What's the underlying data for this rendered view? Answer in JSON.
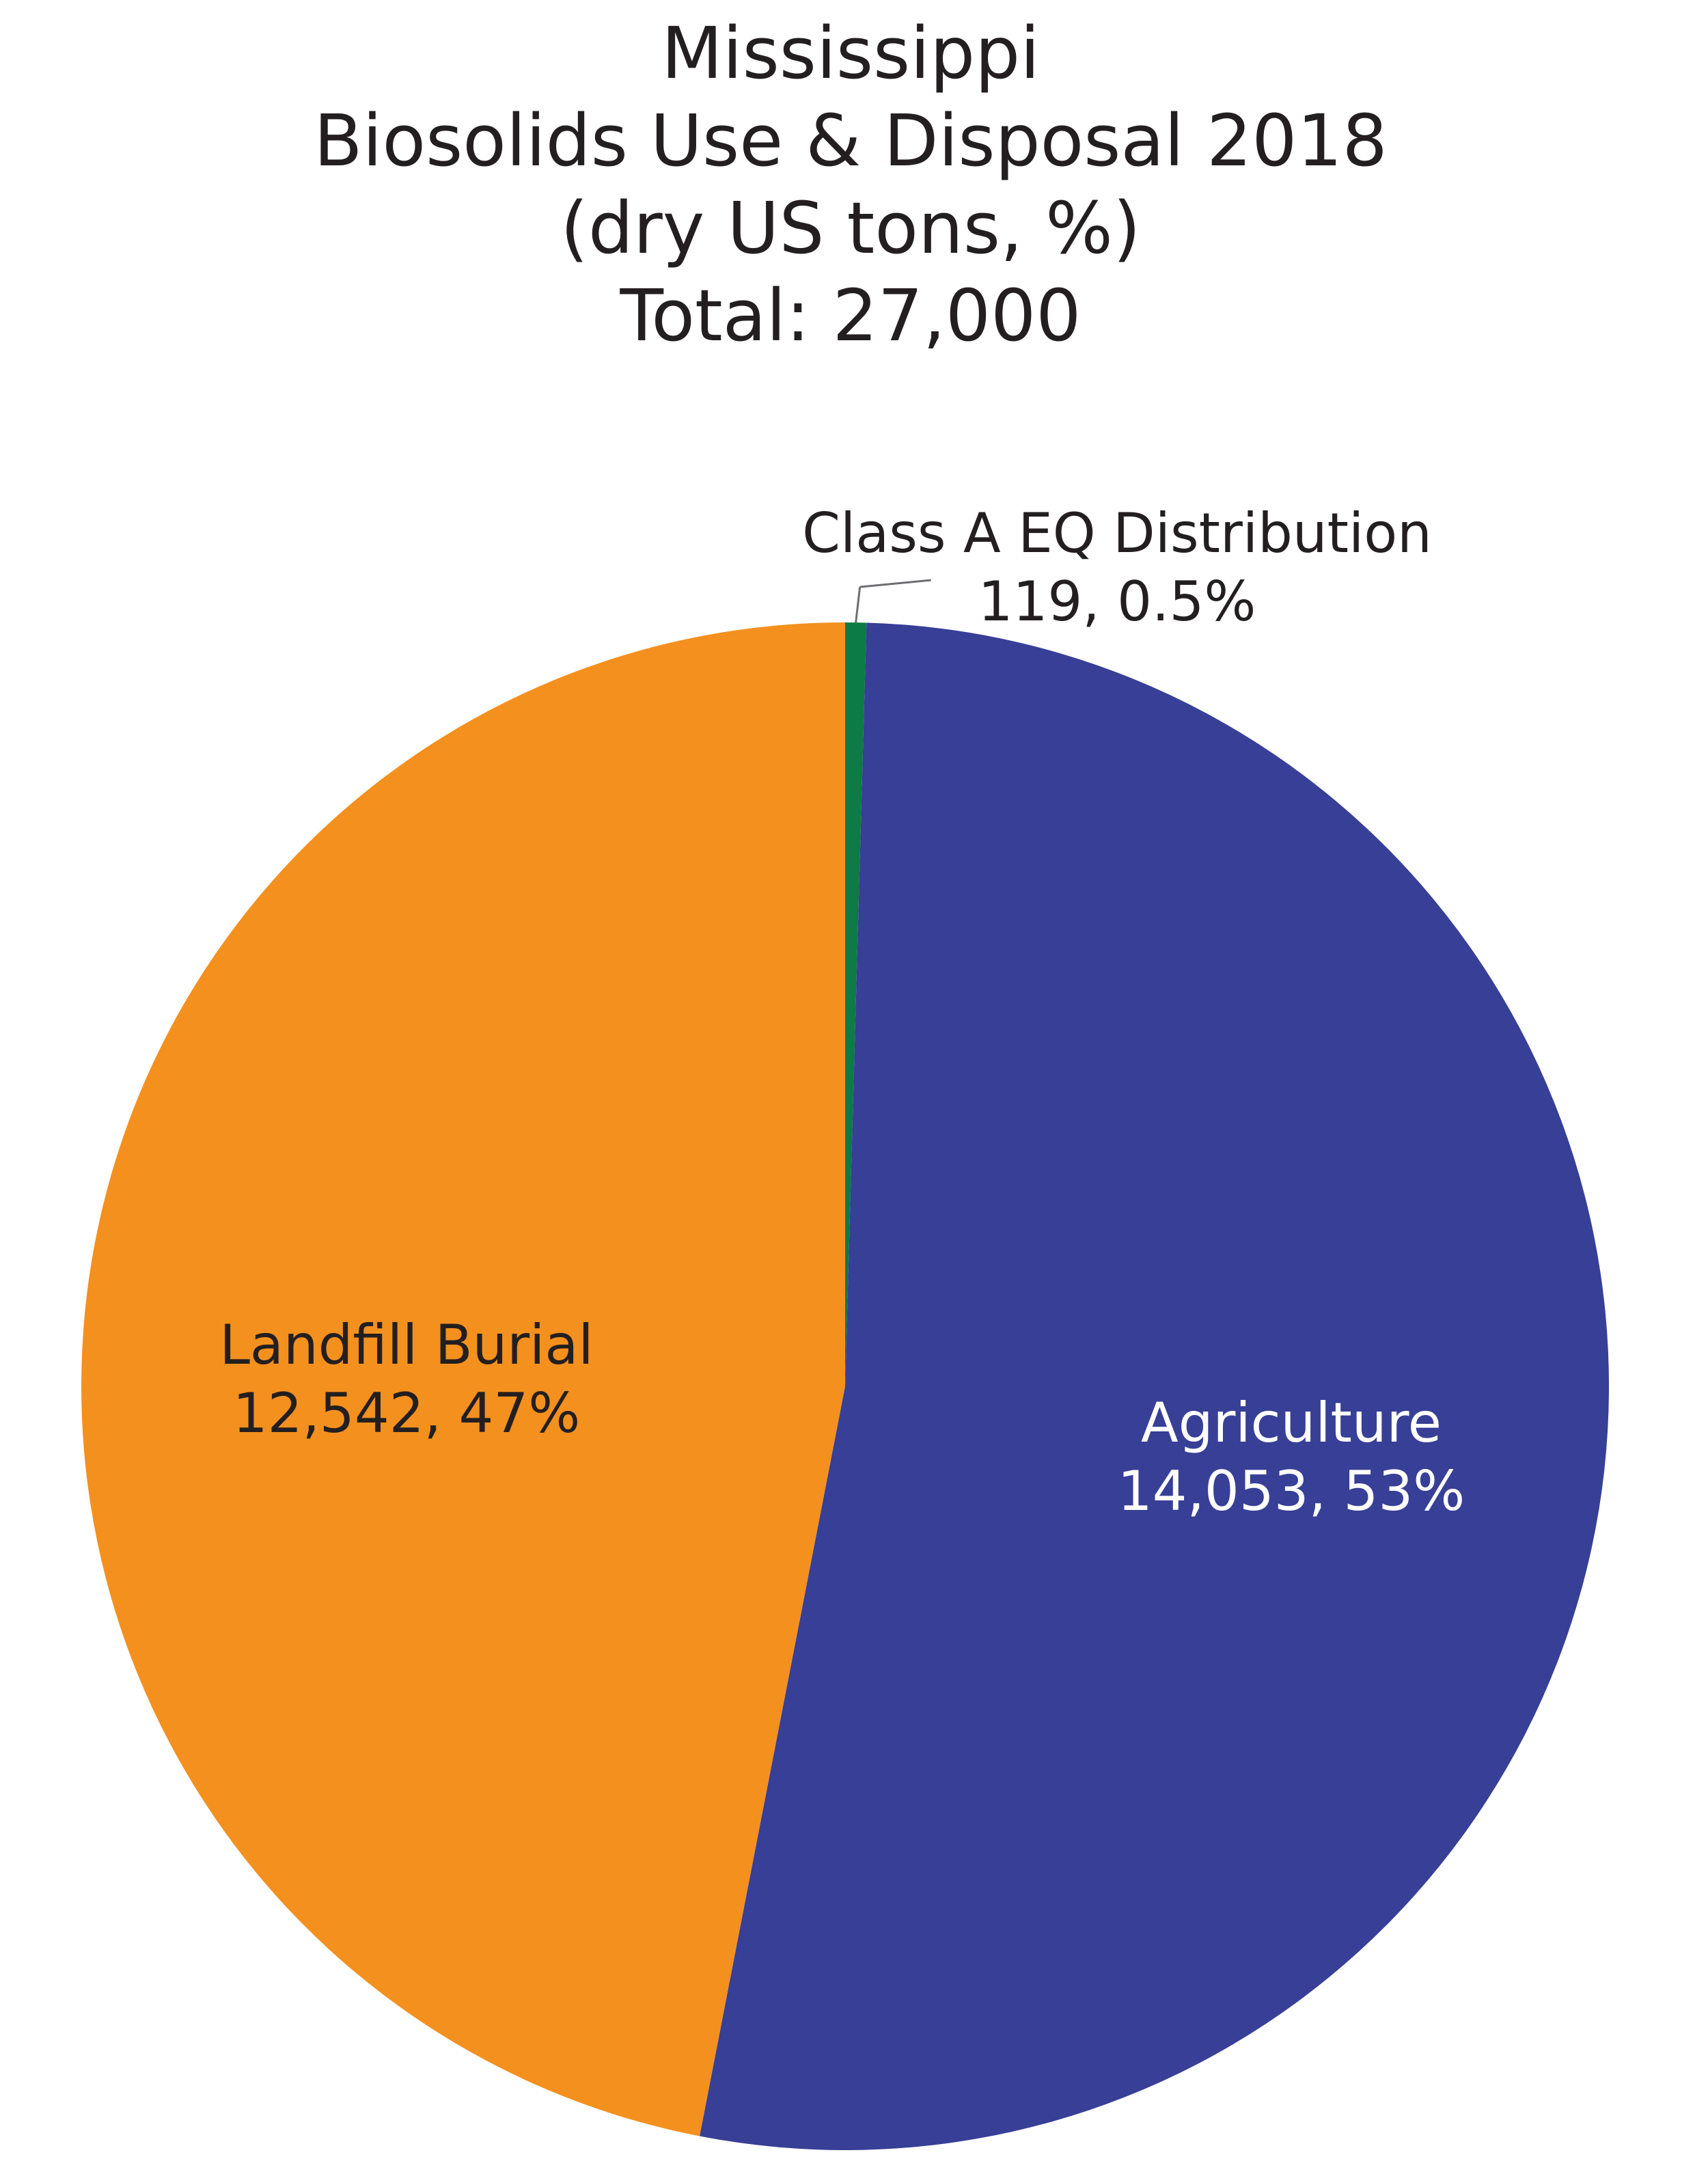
{
  "chart_data": {
    "type": "pie",
    "title": [
      "Mississippi",
      "Biosolids Use & Disposal 2018",
      "(dry US tons, %)",
      "Total: 27,000"
    ],
    "slices": [
      {
        "category": "Class A EQ Distribution",
        "value": 119,
        "percent": 0.5,
        "label_value": "119, 0.5%",
        "color": "#0e7a45"
      },
      {
        "category": "Agriculture",
        "value": 14053,
        "percent": 53,
        "label_value": "14,053, 53%",
        "color": "#373f96"
      },
      {
        "category": "Landfill Burial",
        "value": 12542,
        "percent": 47,
        "label_value": "12,542, 47%",
        "color": "#f4901e"
      }
    ],
    "start_angle": "12 o'clock",
    "direction": "clockwise",
    "legend": "none"
  }
}
